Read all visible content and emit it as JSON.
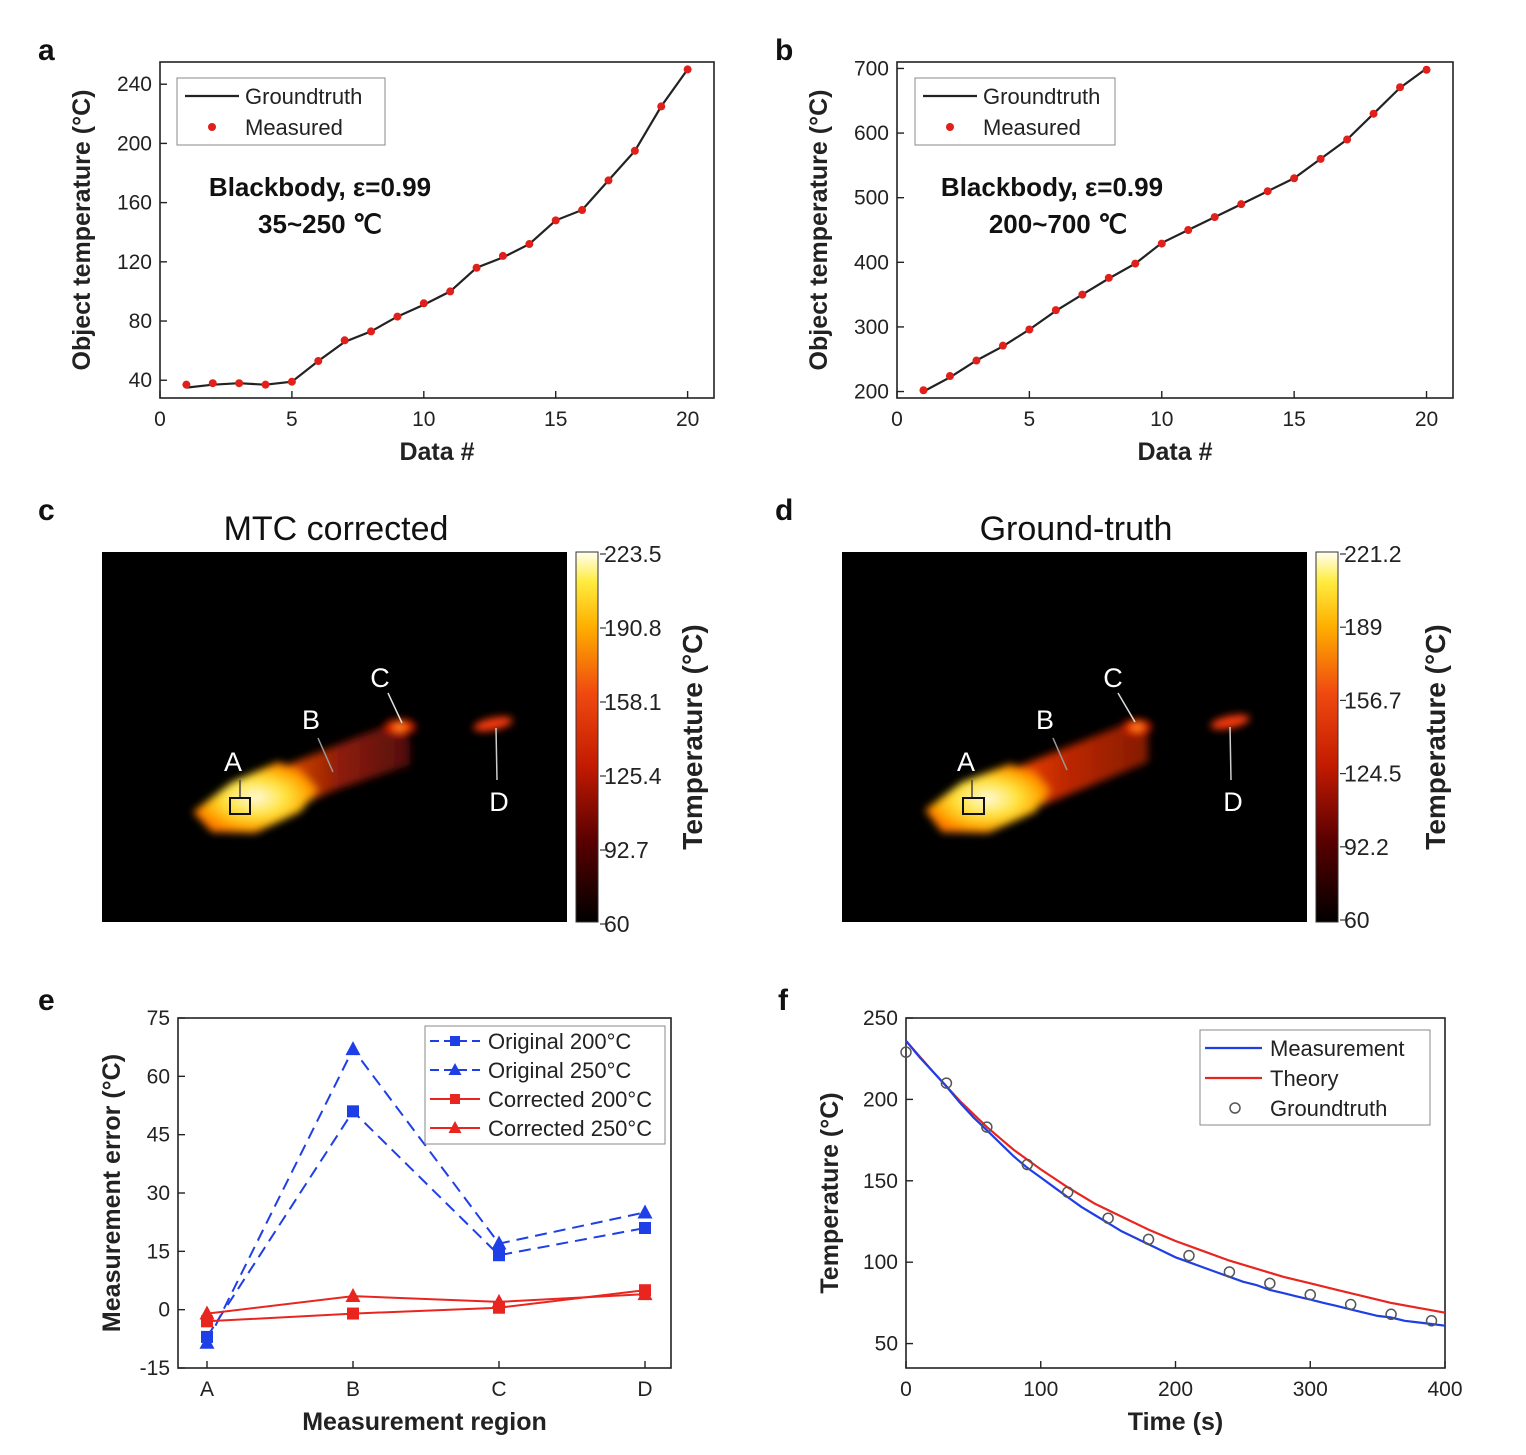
{
  "colors": {
    "line_black": "#222222",
    "marker_red": "#e0201a",
    "blue": "#1f3fe6",
    "red": "#e8261f",
    "groundtruth_marker": "#555555"
  },
  "chart_data": [
    {
      "panel": "a",
      "type": "line",
      "xlabel": "Data #",
      "ylabel": "Object temperature (°C)",
      "xlim": [
        0,
        21
      ],
      "ylim": [
        28,
        255
      ],
      "xticks": [
        0,
        5,
        10,
        15,
        20
      ],
      "yticks": [
        40,
        80,
        120,
        160,
        200,
        240
      ],
      "annotation": [
        "Blackbody, ε=0.99",
        "35~250 ℃"
      ],
      "legend": [
        "Groundtruth",
        "Measured"
      ],
      "legend_position": "top-left",
      "x": [
        1,
        2,
        3,
        4,
        5,
        6,
        7,
        8,
        9,
        10,
        11,
        12,
        13,
        14,
        15,
        16,
        17,
        18,
        19,
        20
      ],
      "series": [
        {
          "name": "Groundtruth",
          "style": "line",
          "values": [
            35,
            37,
            38,
            37,
            39,
            53,
            66,
            73,
            83,
            91,
            100,
            116,
            123,
            132,
            148,
            155,
            175,
            195,
            225,
            250
          ]
        },
        {
          "name": "Measured",
          "style": "markers",
          "values": [
            37,
            38,
            38,
            37,
            39,
            53,
            67,
            73,
            83,
            92,
            100,
            116,
            124,
            132,
            148,
            155,
            175,
            195,
            225,
            250
          ]
        }
      ]
    },
    {
      "panel": "b",
      "type": "line",
      "xlabel": "Data #",
      "ylabel": "Object temperature (°C)",
      "xlim": [
        0,
        21
      ],
      "ylim": [
        190,
        710
      ],
      "xticks": [
        0,
        5,
        10,
        15,
        20
      ],
      "yticks": [
        200,
        300,
        400,
        500,
        600,
        700
      ],
      "annotation": [
        "Blackbody, ε=0.99",
        "200~700 ℃"
      ],
      "legend": [
        "Groundtruth",
        "Measured"
      ],
      "legend_position": "top-left",
      "x": [
        1,
        2,
        3,
        4,
        5,
        6,
        7,
        8,
        9,
        10,
        11,
        12,
        13,
        14,
        15,
        16,
        17,
        18,
        19,
        20
      ],
      "series": [
        {
          "name": "Groundtruth",
          "style": "line",
          "values": [
            200,
            222,
            248,
            270,
            296,
            325,
            350,
            375,
            398,
            430,
            450,
            470,
            490,
            510,
            530,
            560,
            590,
            630,
            670,
            700
          ]
        },
        {
          "name": "Measured",
          "style": "markers",
          "values": [
            202,
            224,
            248,
            271,
            296,
            326,
            350,
            376,
            398,
            429,
            450,
            470,
            490,
            510,
            530,
            560,
            590,
            630,
            671,
            698
          ]
        }
      ]
    },
    {
      "panel": "c",
      "type": "heatmap",
      "title": "MTC corrected",
      "colorbar_label": "Temperature (°C)",
      "colorbar_ticks": [
        "223.5",
        "190.8",
        "158.1",
        "125.4",
        "92.7",
        "60"
      ],
      "regions": [
        "A",
        "B",
        "C",
        "D"
      ]
    },
    {
      "panel": "d",
      "type": "heatmap",
      "title": "Ground-truth",
      "colorbar_label": "Temperature (°C)",
      "colorbar_ticks": [
        "221.2",
        "189",
        "156.7",
        "124.5",
        "92.2",
        "60"
      ],
      "regions": [
        "A",
        "B",
        "C",
        "D"
      ]
    },
    {
      "panel": "e",
      "type": "line",
      "xlabel": "Measurement region",
      "ylabel": "Measurement error (°C)",
      "categories": [
        "A",
        "B",
        "C",
        "D"
      ],
      "ylim": [
        -15,
        75
      ],
      "yticks": [
        -15,
        0,
        15,
        30,
        45,
        60,
        75
      ],
      "legend_position": "top-right",
      "series": [
        {
          "name": "Original 200°C",
          "color": "blue",
          "dash": true,
          "marker": "square",
          "values": [
            -7,
            51,
            14,
            21
          ]
        },
        {
          "name": "Original 250°C",
          "color": "blue",
          "dash": true,
          "marker": "triangle",
          "values": [
            -8.5,
            67,
            17,
            25
          ]
        },
        {
          "name": "Corrected 200°C",
          "color": "red",
          "dash": false,
          "marker": "square",
          "values": [
            -3,
            -1,
            0.5,
            5
          ]
        },
        {
          "name": "Corrected 250°C",
          "color": "red",
          "dash": false,
          "marker": "triangle",
          "values": [
            -1,
            3.5,
            2,
            4
          ]
        }
      ]
    },
    {
      "panel": "f",
      "type": "line",
      "xlabel": "Time (s)",
      "ylabel": "Temperature (°C)",
      "xlim": [
        0,
        400
      ],
      "ylim": [
        35,
        250
      ],
      "xticks": [
        0,
        100,
        200,
        300,
        400
      ],
      "yticks": [
        50,
        100,
        150,
        200,
        250
      ],
      "legend_position": "top-right",
      "series": [
        {
          "name": "Measurement",
          "color": "blue",
          "style": "line",
          "x": [
            0,
            10,
            20,
            30,
            40,
            50,
            60,
            70,
            80,
            90,
            100,
            110,
            120,
            130,
            140,
            150,
            160,
            170,
            180,
            190,
            200,
            210,
            220,
            230,
            240,
            250,
            260,
            270,
            280,
            290,
            300,
            310,
            320,
            330,
            340,
            350,
            360,
            370,
            380,
            390,
            400
          ],
          "values": [
            236,
            226,
            217,
            208,
            198,
            189,
            181,
            173,
            165,
            158,
            152,
            146,
            140,
            134,
            129,
            124,
            119,
            115,
            111,
            107,
            103,
            100,
            97,
            94,
            91,
            88,
            86,
            83,
            81,
            79,
            77,
            75,
            73,
            71,
            69,
            67,
            66,
            64,
            63,
            62,
            61
          ]
        },
        {
          "name": "Theory",
          "color": "red",
          "style": "line",
          "x": [
            0,
            20,
            40,
            60,
            80,
            100,
            120,
            140,
            160,
            180,
            200,
            220,
            240,
            260,
            280,
            300,
            320,
            340,
            360,
            380,
            400
          ],
          "values": [
            236,
            217,
            199,
            183,
            169,
            157,
            146,
            136,
            128,
            120,
            113,
            107,
            101,
            96,
            91,
            87,
            83,
            79,
            75,
            72,
            69
          ]
        },
        {
          "name": "Groundtruth",
          "color": "groundtruth_marker",
          "style": "open-circle",
          "x": [
            0,
            30,
            60,
            90,
            120,
            150,
            180,
            210,
            240,
            270,
            300,
            330,
            360,
            390
          ],
          "values": [
            229,
            210,
            183,
            160,
            143,
            127,
            114,
            104,
            94,
            87,
            80,
            74,
            68,
            64
          ]
        }
      ]
    }
  ]
}
